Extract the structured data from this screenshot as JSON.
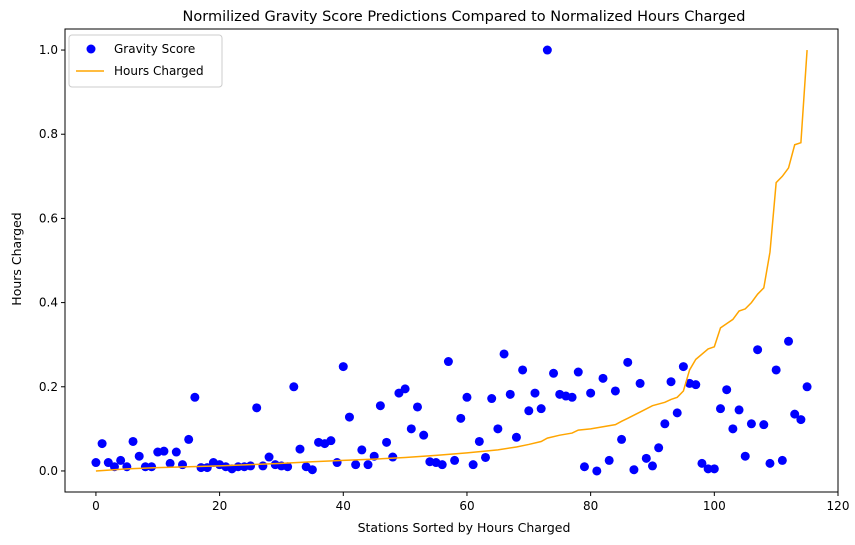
{
  "chart_data": {
    "type": "scatter",
    "title": "Normilized Gravity Score Predictions Compared to Normalized Hours Charged",
    "xlabel": "Stations Sorted by Hours Charged",
    "ylabel": "Hours Charged",
    "xlim": [
      -5,
      120
    ],
    "ylim": [
      -0.05,
      1.05
    ],
    "xticks": [
      0,
      20,
      40,
      60,
      80,
      100,
      120
    ],
    "yticks": [
      0.0,
      0.2,
      0.4,
      0.6,
      0.8,
      1.0
    ],
    "grid": false,
    "legend": "top-left",
    "series": [
      {
        "name": "Gravity Score",
        "kind": "scatter",
        "color": "#0000ff",
        "x": [
          0,
          1,
          2,
          3,
          4,
          5,
          6,
          7,
          8,
          9,
          10,
          11,
          12,
          13,
          14,
          15,
          16,
          17,
          18,
          19,
          20,
          21,
          22,
          23,
          24,
          25,
          26,
          27,
          28,
          29,
          30,
          31,
          32,
          33,
          34,
          35,
          36,
          37,
          38,
          39,
          40,
          41,
          42,
          43,
          44,
          45,
          46,
          47,
          48,
          49,
          50,
          51,
          52,
          53,
          54,
          55,
          56,
          57,
          58,
          59,
          60,
          61,
          62,
          63,
          64,
          65,
          66,
          67,
          68,
          69,
          70,
          71,
          72,
          73,
          74,
          75,
          76,
          77,
          78,
          79,
          80,
          81,
          82,
          83,
          84,
          85,
          86,
          87,
          88,
          89,
          90,
          91,
          92,
          93,
          94,
          95,
          96,
          97,
          98,
          99,
          100,
          101,
          102,
          103,
          104,
          105,
          106,
          107,
          108,
          109,
          110,
          111,
          112,
          113,
          114,
          115
        ],
        "values": [
          0.02,
          0.065,
          0.02,
          0.01,
          0.025,
          0.01,
          0.07,
          0.035,
          0.01,
          0.01,
          0.045,
          0.047,
          0.018,
          0.045,
          0.015,
          0.075,
          0.175,
          0.008,
          0.008,
          0.02,
          0.015,
          0.01,
          0.005,
          0.01,
          0.01,
          0.012,
          0.15,
          0.012,
          0.033,
          0.015,
          0.012,
          0.01,
          0.2,
          0.052,
          0.01,
          0.003,
          0.068,
          0.065,
          0.072,
          0.02,
          0.248,
          0.128,
          0.015,
          0.05,
          0.015,
          0.035,
          0.155,
          0.068,
          0.033,
          0.185,
          0.195,
          0.1,
          0.152,
          0.085,
          0.022,
          0.02,
          0.015,
          0.26,
          0.025,
          0.125,
          0.175,
          0.015,
          0.07,
          0.032,
          0.172,
          0.1,
          0.278,
          0.182,
          0.08,
          0.24,
          0.143,
          0.185,
          0.148,
          1.0,
          0.232,
          0.182,
          0.178,
          0.175,
          0.235,
          0.01,
          0.185,
          0.0,
          0.22,
          0.025,
          0.19,
          0.075,
          0.258,
          0.003,
          0.208,
          0.03,
          0.012,
          0.055,
          0.112,
          0.212,
          0.138,
          0.248,
          0.208,
          0.205,
          0.018,
          0.005,
          0.005,
          0.148,
          0.193,
          0.1,
          0.145,
          0.035,
          0.112,
          0.288,
          0.11,
          0.018,
          0.24,
          0.025,
          0.308,
          0.135,
          0.122,
          0.2
        ]
      },
      {
        "name": "Hours Charged",
        "kind": "line",
        "color": "#ffa500",
        "x": [
          0,
          5,
          10,
          15,
          20,
          25,
          30,
          35,
          40,
          45,
          50,
          55,
          60,
          65,
          68,
          70,
          72,
          73,
          75,
          77,
          78,
          80,
          82,
          84,
          85,
          86,
          88,
          90,
          92,
          93,
          94,
          95,
          96,
          97,
          99,
          100,
          101,
          102,
          103,
          104,
          105,
          106,
          107,
          108,
          109,
          110,
          111,
          112,
          113,
          114,
          115
        ],
        "values": [
          0.0,
          0.005,
          0.008,
          0.01,
          0.012,
          0.015,
          0.018,
          0.022,
          0.025,
          0.028,
          0.032,
          0.037,
          0.043,
          0.05,
          0.057,
          0.063,
          0.07,
          0.078,
          0.085,
          0.09,
          0.097,
          0.1,
          0.105,
          0.11,
          0.118,
          0.125,
          0.14,
          0.155,
          0.163,
          0.17,
          0.175,
          0.19,
          0.24,
          0.265,
          0.29,
          0.295,
          0.34,
          0.35,
          0.36,
          0.38,
          0.385,
          0.4,
          0.42,
          0.435,
          0.52,
          0.685,
          0.7,
          0.72,
          0.775,
          0.78,
          1.0
        ]
      }
    ]
  }
}
